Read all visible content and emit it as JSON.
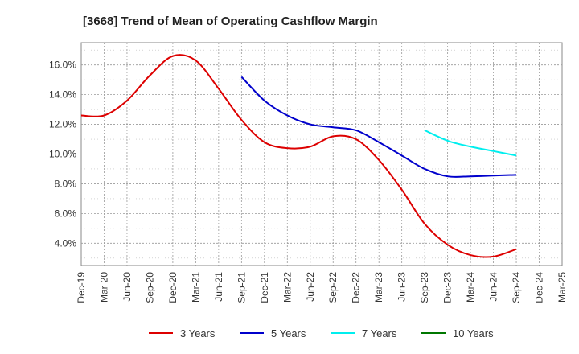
{
  "chart_data": {
    "type": "line",
    "title": "[3668]  Trend of Mean of Operating Cashflow Margin",
    "xlabel": "",
    "ylabel": "",
    "ylim": [
      2.5,
      17.5
    ],
    "yticks": [
      4.0,
      6.0,
      8.0,
      10.0,
      12.0,
      14.0,
      16.0
    ],
    "ytick_labels": [
      "4.0%",
      "6.0%",
      "8.0%",
      "10.0%",
      "12.0%",
      "14.0%",
      "16.0%"
    ],
    "categories": [
      "Dec-19",
      "Mar-20",
      "Jun-20",
      "Sep-20",
      "Dec-20",
      "Mar-21",
      "Jun-21",
      "Sep-21",
      "Dec-21",
      "Mar-22",
      "Jun-22",
      "Sep-22",
      "Dec-22",
      "Mar-23",
      "Jun-23",
      "Sep-23",
      "Dec-23",
      "Mar-24",
      "Jun-24",
      "Sep-24",
      "Dec-24",
      "Mar-25"
    ],
    "grid": true,
    "legend_position": "bottom",
    "series": [
      {
        "name": "3 Years",
        "color": "#dd0000",
        "values": [
          12.6,
          12.6,
          13.6,
          15.3,
          16.6,
          16.3,
          14.4,
          12.3,
          10.8,
          10.4,
          10.5,
          11.2,
          11.0,
          9.6,
          7.6,
          5.3,
          3.9,
          3.2,
          3.1,
          3.6,
          null,
          null
        ]
      },
      {
        "name": "5 Years",
        "color": "#0000cc",
        "values": [
          null,
          null,
          null,
          null,
          null,
          null,
          null,
          15.2,
          13.6,
          12.6,
          12.0,
          11.8,
          11.6,
          10.8,
          9.9,
          9.0,
          8.5,
          8.5,
          8.55,
          8.6,
          null,
          null
        ]
      },
      {
        "name": "7 Years",
        "color": "#00eeee",
        "values": [
          null,
          null,
          null,
          null,
          null,
          null,
          null,
          null,
          null,
          null,
          null,
          null,
          null,
          null,
          null,
          11.6,
          10.9,
          10.5,
          10.2,
          9.9,
          null,
          null
        ]
      },
      {
        "name": "10 Years",
        "color": "#007700",
        "values": [
          null,
          null,
          null,
          null,
          null,
          null,
          null,
          null,
          null,
          null,
          null,
          null,
          null,
          null,
          null,
          null,
          null,
          null,
          null,
          null,
          null,
          null
        ]
      }
    ]
  }
}
